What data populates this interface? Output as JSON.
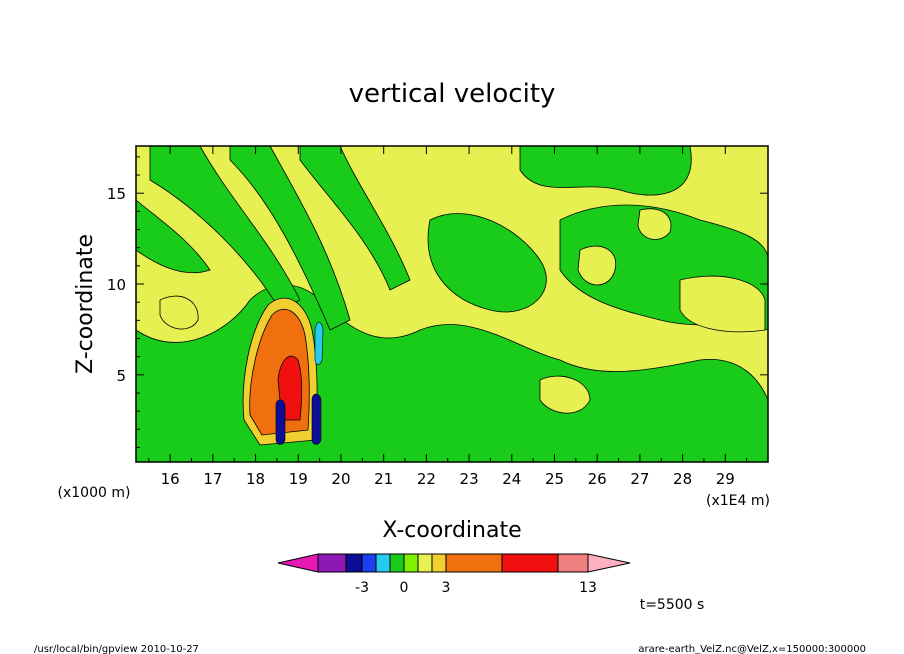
{
  "chart_data": {
    "type": "contour",
    "title": "vertical velocity",
    "xlabel": "X-coordinate",
    "ylabel": "Z-coordinate",
    "x_scale_note": "(x1E4 m)",
    "y_scale_note": "(x1000 m)",
    "xlim": [
      15.2,
      30.0
    ],
    "ylim": [
      0.2,
      17.6
    ],
    "x_ticks": [
      "16",
      "17",
      "18",
      "19",
      "20",
      "21",
      "22",
      "23",
      "24",
      "25",
      "26",
      "27",
      "28",
      "29"
    ],
    "y_ticks": [
      "5",
      "10",
      "15"
    ],
    "colorbar": {
      "colors": [
        "#e619b3",
        "#8c19b3",
        "#0d0d99",
        "#1a40f0",
        "#26ccf0",
        "#19cc19",
        "#7ff000",
        "#e6f050",
        "#f0d030",
        "#f07010",
        "#f01010",
        "#f08080",
        "#ffb0c0"
      ],
      "labels": [
        "-3",
        "0",
        "3",
        "13"
      ]
    },
    "fields": {
      "background_color": "#e6f050",
      "green_color": "#19cc19"
    },
    "time_label": "t=5500 s"
  },
  "footer": {
    "left": "/usr/local/bin/gpview  2010-10-27",
    "right": "arare-earth_VelZ.nc@VelZ,x=150000:300000"
  }
}
